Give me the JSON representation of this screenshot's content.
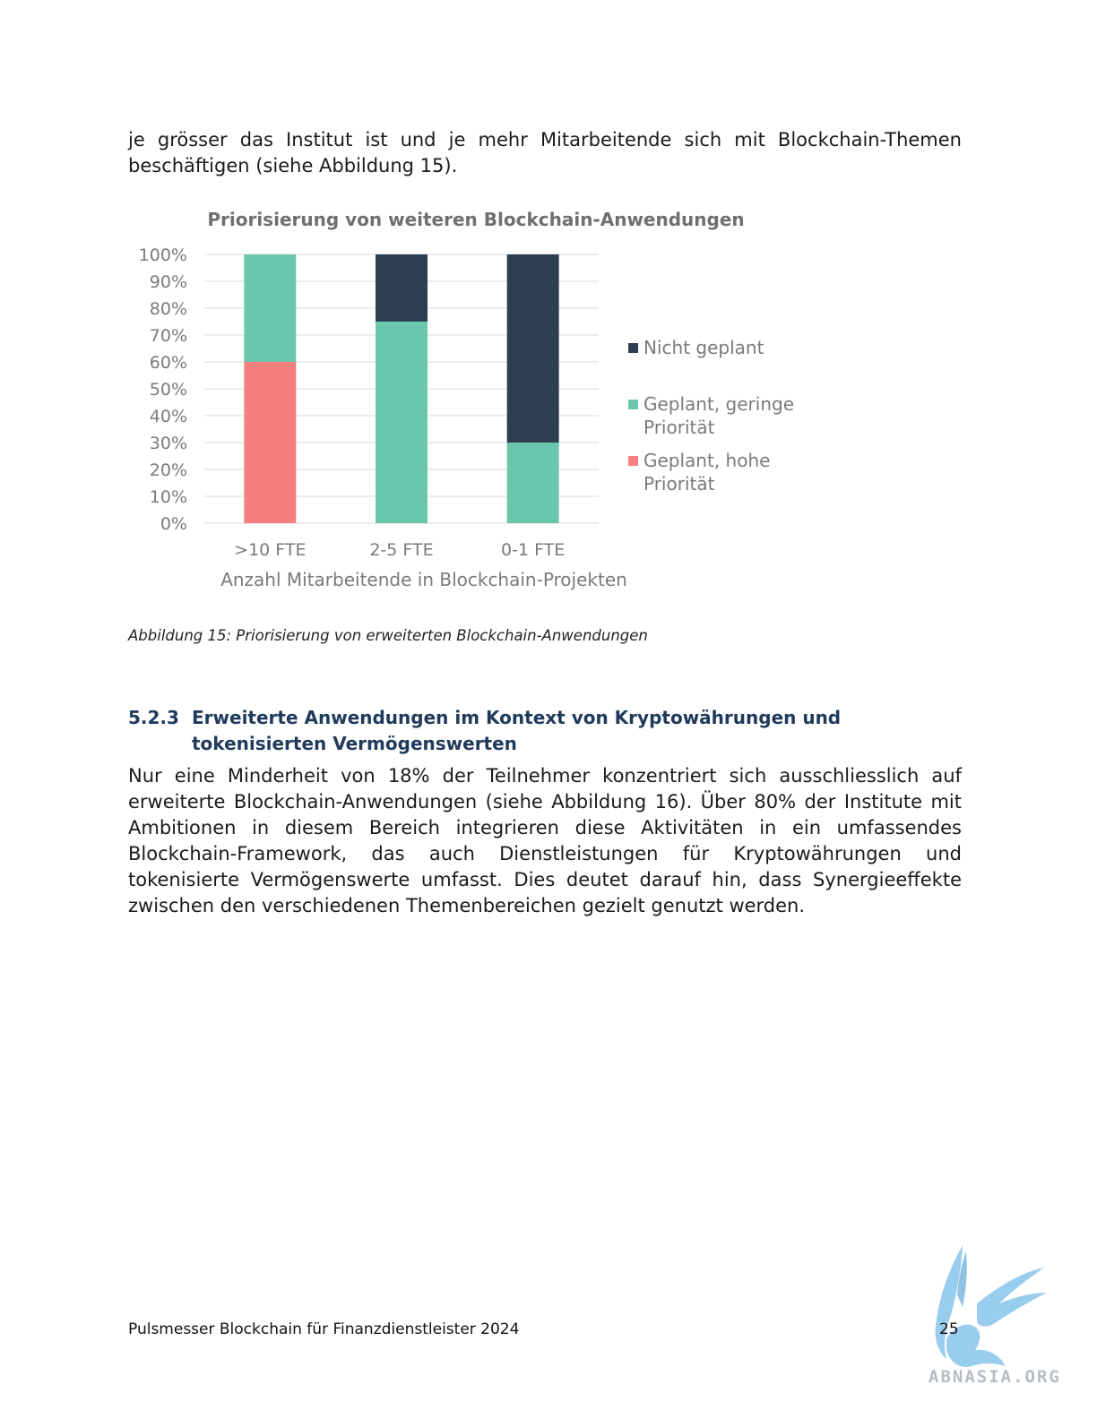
{
  "intro": "je grösser das Institut ist und je mehr Mitarbeitende sich mit Blockchain-Themen beschäftigen (siehe Abbildung 15).",
  "chart_data": {
    "type": "bar",
    "stacked": true,
    "title": "Priorisierung von weiteren Blockchain-Anwendungen",
    "xlabel": "Anzahl Mitarbeitende in Blockchain-Projekten",
    "ylabel": "",
    "categories": [
      ">10 FTE",
      "2-5 FTE",
      "0-1 FTE"
    ],
    "series": [
      {
        "name": "Geplant, hohe Priorität",
        "values": [
          60,
          0,
          0
        ],
        "color": "#f47f7e",
        "legend_lines": [
          "Geplant, hohe",
          "Priorität"
        ]
      },
      {
        "name": "Geplant, geringe Priorität",
        "values": [
          40,
          75,
          30
        ],
        "color": "#6bc7ab",
        "legend_lines": [
          "Geplant, geringe",
          "Priorität"
        ]
      },
      {
        "name": "Nicht geplant",
        "values": [
          0,
          25,
          70
        ],
        "color": "#2d3e50",
        "legend_lines": [
          "Nicht geplant"
        ]
      }
    ],
    "legend_order": [
      "Nicht geplant",
      "Geplant, geringe Priorität",
      "Geplant, hohe Priorität"
    ],
    "ylim": [
      0,
      100
    ],
    "yticks": [
      "0%",
      "10%",
      "20%",
      "30%",
      "40%",
      "50%",
      "60%",
      "70%",
      "80%",
      "90%",
      "100%"
    ],
    "grid": true,
    "legend_position": "right"
  },
  "caption": "Abbildung 15: Priorisierung von erweiterten Blockchain-Anwendungen",
  "section": {
    "number": "5.2.3",
    "title": "Erweiterte Anwendungen im Kontext von Kryptowährungen und tokenisierten Vermögenswerten"
  },
  "body": "Nur eine Minderheit von 18% der Teilnehmer konzentriert sich ausschliesslich auf erweiterte Blockchain-Anwendungen (siehe Abbildung 16). Über 80% der Institute mit Ambitionen in diesem Bereich integrieren diese Aktivitäten in ein umfassendes Blockchain-Framework, das auch Dienstleistungen für Kryptowährungen und tokenisierte Vermögenswerte umfasst. Dies deutet darauf hin, dass Synergieeffekte zwischen den verschiedenen Themenbereichen gezielt genutzt werden.",
  "footer": {
    "title": "Pulsmesser Blockchain für Finanzdienstleister 2024",
    "page": "25"
  },
  "watermark": {
    "text": "ABNASIA.ORG",
    "icon": "griffin-logo"
  }
}
